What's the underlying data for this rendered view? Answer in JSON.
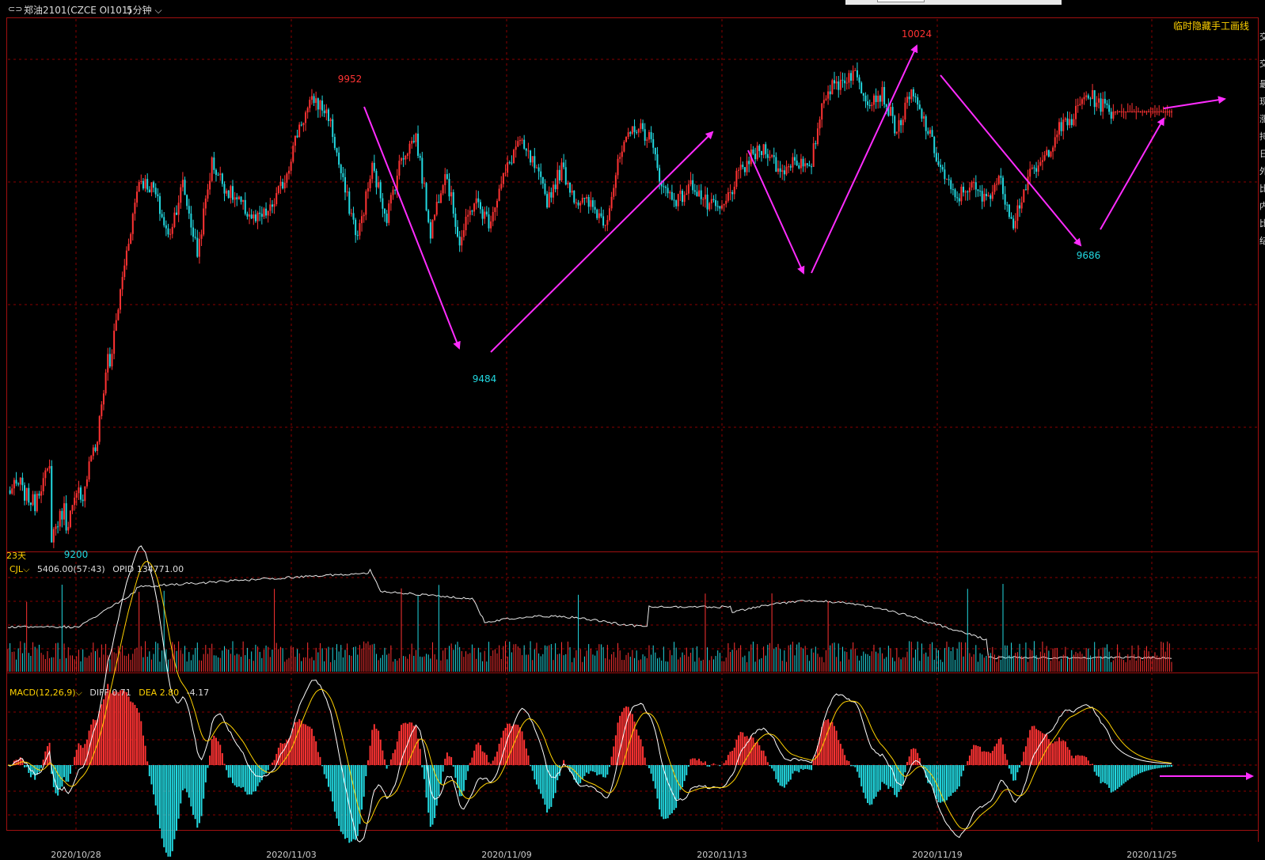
{
  "header": {
    "link_icon": "chain-link-icon",
    "instrument": "郑油2101(CZCE OI101)",
    "period": "5分钟",
    "hide_lines_button": "临时隐藏手工画线"
  },
  "colors": {
    "background": "#000000",
    "up": "#ff3333",
    "down": "#22d8e0",
    "grid": "#8b0000",
    "label_yellow": "#ffd200",
    "arrow": "#ff2cff"
  },
  "price_pane": {
    "days_label": "23天",
    "extremes": [
      {
        "label": "9200",
        "date": "2020/10/28",
        "kind": "low"
      },
      {
        "label": "9952",
        "date": "2020/11/04",
        "kind": "high"
      },
      {
        "label": "9484",
        "date": "2020/11/09",
        "kind": "low"
      },
      {
        "label": "10024",
        "date": "2020/11/18",
        "kind": "high"
      },
      {
        "label": "9686",
        "date": "2020/11/23",
        "kind": "low"
      }
    ]
  },
  "volume_pane": {
    "indicator": "CJL",
    "value": "5406.00(57:43)",
    "opid": "OPID 134771.00"
  },
  "macd_pane": {
    "indicator": "MACD(12,26,9)",
    "diff": "DIFF 0.71",
    "dea": "DEA 2.80",
    "macd": "-4.17"
  },
  "x_axis": {
    "dates": [
      "2020/10/28",
      "2020/11/03",
      "2020/11/09",
      "2020/11/13",
      "2020/11/19",
      "2020/11/25"
    ]
  },
  "chart_data": {
    "type": "candlestick",
    "title": "郑油2101(CZCE OI101) 5分钟",
    "x_range": [
      "2020/10/26",
      "2020/11/25"
    ],
    "price_path": [
      [
        9212,
        9230
      ],
      [
        9212,
        9185
      ],
      [
        9212,
        9260
      ],
      [
        9130,
        9190
      ],
      [
        9150,
        9220
      ],
      [
        9190,
        9320
      ],
      [
        9280,
        9500
      ],
      [
        9450,
        9640
      ],
      [
        9640,
        9800
      ],
      [
        9800,
        9780
      ],
      [
        9780,
        9690
      ],
      [
        9690,
        9790
      ],
      [
        9790,
        9660
      ],
      [
        9660,
        9830
      ],
      [
        9830,
        9780
      ],
      [
        9780,
        9750
      ],
      [
        9750,
        9720
      ],
      [
        9720,
        9740
      ],
      [
        9740,
        9800
      ],
      [
        9800,
        9900
      ],
      [
        9900,
        9950
      ],
      [
        9950,
        9920
      ],
      [
        9920,
        9790
      ],
      [
        9790,
        9690
      ],
      [
        9690,
        9820
      ],
      [
        9820,
        9730
      ],
      [
        9730,
        9840
      ],
      [
        9840,
        9880
      ],
      [
        9880,
        9700
      ],
      [
        9700,
        9820
      ],
      [
        9820,
        9680
      ],
      [
        9680,
        9760
      ],
      [
        9760,
        9720
      ],
      [
        9720,
        9800
      ],
      [
        9800,
        9870
      ],
      [
        9870,
        9830
      ],
      [
        9830,
        9760
      ],
      [
        9760,
        9820
      ],
      [
        9820,
        9760
      ],
      [
        9760,
        9750
      ],
      [
        9750,
        9720
      ],
      [
        9720,
        9840
      ],
      [
        9840,
        9900
      ],
      [
        9900,
        9880
      ],
      [
        9880,
        9780
      ],
      [
        9780,
        9760
      ],
      [
        9760,
        9790
      ],
      [
        9790,
        9750
      ],
      [
        9750,
        9740
      ],
      [
        9740,
        9800
      ],
      [
        9800,
        9840
      ],
      [
        9840,
        9860
      ],
      [
        9860,
        9810
      ],
      [
        9810,
        9840
      ],
      [
        9840,
        9810
      ],
      [
        9810,
        9960
      ],
      [
        9960,
        9980
      ],
      [
        9980,
        10000
      ],
      [
        10000,
        9950
      ],
      [
        9950,
        9960
      ],
      [
        9960,
        9890
      ],
      [
        9890,
        9960
      ],
      [
        9960,
        9900
      ],
      [
        9900,
        9820
      ],
      [
        9820,
        9760
      ],
      [
        9760,
        9790
      ],
      [
        9790,
        9760
      ],
      [
        9760,
        9800
      ],
      [
        9800,
        9720
      ],
      [
        9720,
        9800
      ],
      [
        9800,
        9830
      ],
      [
        9830,
        9890
      ],
      [
        9890,
        9910
      ],
      [
        9910,
        9960
      ],
      [
        9960,
        9940
      ],
      [
        9940,
        9920
      ]
    ],
    "volume": {
      "name": "CJL",
      "last": 5406,
      "open_interest": 134771
    },
    "macd": {
      "params": [
        12,
        26,
        9
      ],
      "diff": 0.71,
      "dea": 2.8,
      "macd": -4.17
    }
  }
}
